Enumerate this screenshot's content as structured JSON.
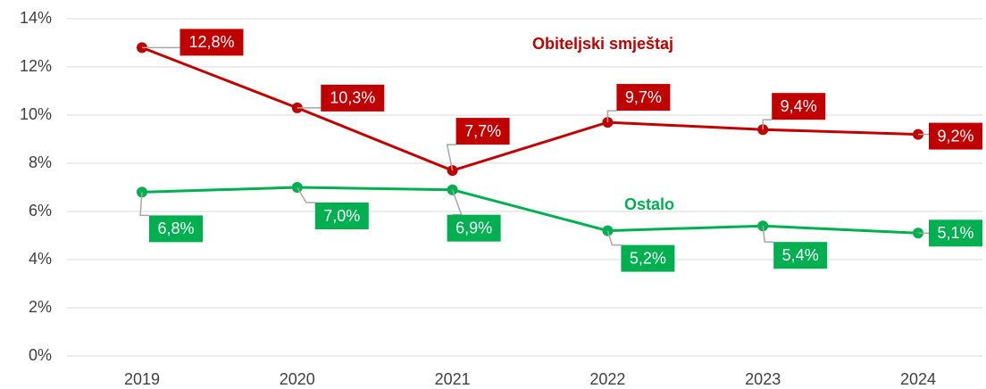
{
  "chart_data": {
    "type": "line",
    "categories": [
      "2019",
      "2020",
      "2021",
      "2022",
      "2023",
      "2024"
    ],
    "series": [
      {
        "name": "Obiteljski smještaj",
        "color": "#c00000",
        "values": [
          12.8,
          10.3,
          7.7,
          9.7,
          9.4,
          9.2
        ],
        "value_labels": [
          "12,8%",
          "10,3%",
          "7,7%",
          "9,7%",
          "9,4%",
          "9,2%"
        ]
      },
      {
        "name": "Ostalo",
        "color": "#00b050",
        "values": [
          6.8,
          7.0,
          6.9,
          5.2,
          5.4,
          5.1
        ],
        "value_labels": [
          "6,8%",
          "7,0%",
          "6,9%",
          "5,2%",
          "5,4%",
          "5,1%"
        ]
      }
    ],
    "ylim": [
      0,
      14
    ],
    "yticks": [
      {
        "value": 0,
        "label": "0%"
      },
      {
        "value": 2,
        "label": "2%"
      },
      {
        "value": 4,
        "label": "4%"
      },
      {
        "value": 6,
        "label": "6%"
      },
      {
        "value": 8,
        "label": "8%"
      },
      {
        "value": 10,
        "label": "10%"
      },
      {
        "value": 12,
        "label": "12%"
      },
      {
        "value": 14,
        "label": "14%"
      }
    ],
    "grid": true
  }
}
